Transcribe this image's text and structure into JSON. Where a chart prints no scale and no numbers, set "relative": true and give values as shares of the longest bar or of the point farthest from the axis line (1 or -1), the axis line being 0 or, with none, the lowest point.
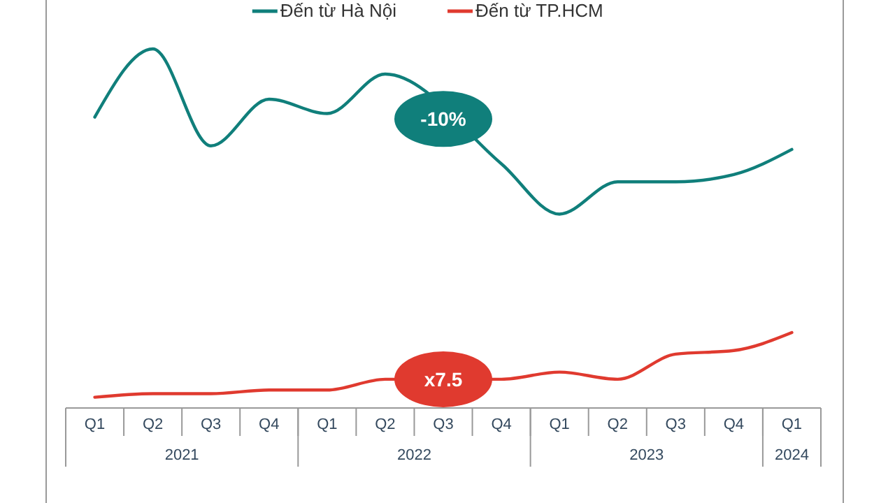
{
  "chart_data": {
    "type": "line",
    "relative": true,
    "legend": "top",
    "categories": [
      "Q1",
      "Q2",
      "Q3",
      "Q4",
      "Q1",
      "Q2",
      "Q3",
      "Q4",
      "Q1",
      "Q2",
      "Q3",
      "Q4",
      "Q1"
    ],
    "series": [
      {
        "name": "Đến từ Hà Nội",
        "color": "#107f7b",
        "values": [
          0.81,
          1,
          0.73,
          0.86,
          0.82,
          0.93,
          null,
          0.68,
          0.54,
          0.63,
          0.63,
          0.65,
          0.72
        ]
      },
      {
        "name": "Đến từ TP.HCM",
        "color": "#e03a2f",
        "values": [
          0.03,
          0.04,
          0.04,
          0.05,
          0.05,
          0.08,
          null,
          0.08,
          0.1,
          0.08,
          0.15,
          0.16,
          0.21
        ]
      }
    ],
    "annotations": [
      "-10%",
      "x7.5",
      "2021",
      "2022",
      "2023",
      "2024"
    ]
  }
}
